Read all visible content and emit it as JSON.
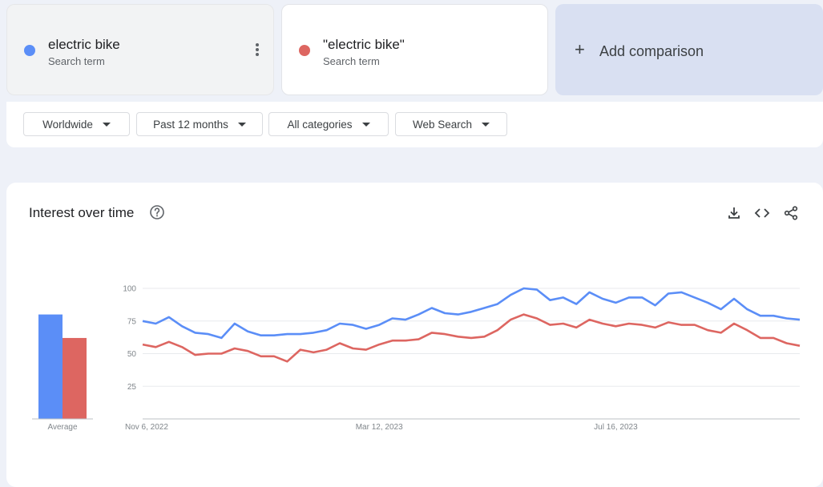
{
  "terms": [
    {
      "label": "electric bike",
      "sublabel": "Search term",
      "color": "#5b8ef7"
    },
    {
      "label": "\"electric bike\"",
      "sublabel": "Search term",
      "color": "#dd6661"
    }
  ],
  "add_comparison": {
    "icon": "+",
    "label": "Add comparison"
  },
  "filters": [
    {
      "label": "Worldwide"
    },
    {
      "label": "Past 12 months"
    },
    {
      "label": "All categories"
    },
    {
      "label": "Web Search"
    }
  ],
  "chart_card": {
    "title": "Interest over time",
    "icons": [
      "help-icon",
      "download-icon",
      "embed-code-icon",
      "share-icon"
    ]
  },
  "chart_data": {
    "type": "line",
    "title": "Interest over time",
    "ylim": [
      0,
      100
    ],
    "y_ticks": [
      25,
      50,
      75,
      100
    ],
    "x_tick_labels": [
      "Nov 6, 2022",
      "Mar 12, 2023",
      "Jul 16, 2023"
    ],
    "x_tick_index": [
      0,
      18,
      36
    ],
    "series": [
      {
        "name": "electric bike",
        "color": "#5b8ef7",
        "values": [
          75,
          73,
          78,
          71,
          66,
          65,
          62,
          73,
          67,
          64,
          64,
          65,
          65,
          66,
          68,
          73,
          72,
          69,
          72,
          77,
          76,
          80,
          85,
          81,
          80,
          82,
          85,
          88,
          95,
          100,
          99,
          91,
          93,
          88,
          97,
          92,
          89,
          93,
          93,
          87,
          96,
          97,
          93,
          89,
          84,
          92,
          84,
          79,
          79,
          77,
          76
        ]
      },
      {
        "name": "\"electric bike\"",
        "color": "#dd6661",
        "values": [
          57,
          55,
          59,
          55,
          49,
          50,
          50,
          54,
          52,
          48,
          48,
          44,
          53,
          51,
          53,
          58,
          54,
          53,
          57,
          60,
          60,
          61,
          66,
          65,
          63,
          62,
          63,
          68,
          76,
          80,
          77,
          72,
          73,
          70,
          76,
          73,
          71,
          73,
          72,
          70,
          74,
          72,
          72,
          68,
          66,
          73,
          68,
          62,
          62,
          58,
          56
        ]
      }
    ],
    "average": {
      "label": "Average",
      "values": [
        80,
        62
      ]
    }
  }
}
